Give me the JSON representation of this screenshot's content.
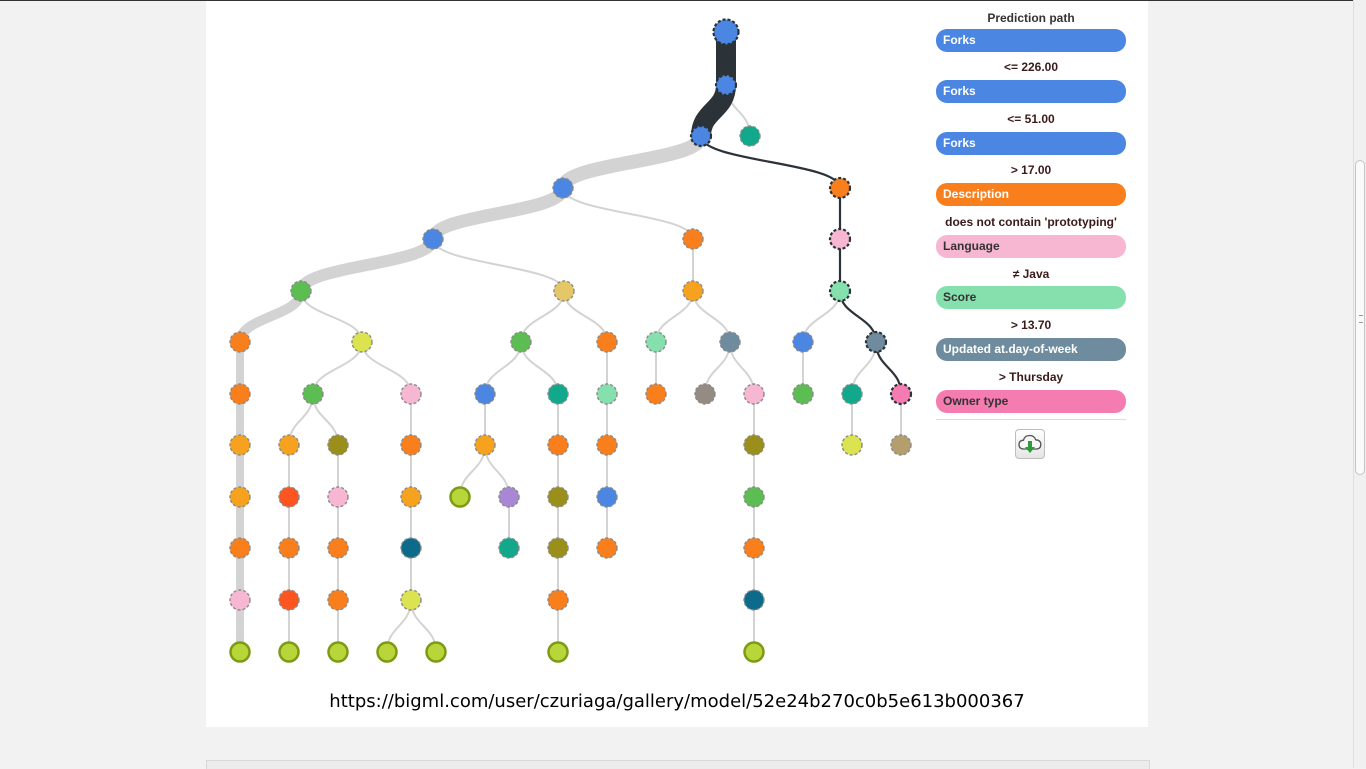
{
  "prediction_path": {
    "title": "Prediction path",
    "steps": [
      {
        "field": "Forks",
        "color": "#4a86e2",
        "text_color": "#ffffff",
        "condition": "<= 226.00"
      },
      {
        "field": "Forks",
        "color": "#4a86e2",
        "text_color": "#ffffff",
        "condition": "<= 51.00"
      },
      {
        "field": "Forks",
        "color": "#4a86e2",
        "text_color": "#ffffff",
        "condition": "> 17.00"
      },
      {
        "field": "Description",
        "color": "#f97f1d",
        "text_color": "#ffffff",
        "condition": "does not contain 'prototyping'"
      },
      {
        "field": "Language",
        "color": "#f7b6d2",
        "text_color": "#333333",
        "condition": "≠ Java"
      },
      {
        "field": "Score",
        "color": "#86e0ae",
        "text_color": "#333333",
        "condition": "> 13.70"
      },
      {
        "field": "Updated at.day-of-week",
        "color": "#6f8b9e",
        "text_color": "#ffffff",
        "condition": "> Thursday"
      },
      {
        "field": "Owner type",
        "color": "#f57cb0",
        "text_color": "#333333",
        "condition": null
      }
    ],
    "download_icon": "cloud-download-icon"
  },
  "model_url": "https://bigml.com/user/czuriaga/gallery/model/52e24b270c0b5e613b000367",
  "colors": {
    "Forks": "#4a86e2",
    "Stars": "#12a88b",
    "Description": "#f97f1d",
    "Language": "#f7b6d2",
    "Score": "#86e0ae",
    "Updated_day": "#6f8b9e",
    "Owner_type": "#f57cb0",
    "Watchers": "#5cbd52",
    "Open_issues": "#dbe350",
    "Size": "#e4c868",
    "Created": "#f7a21e",
    "Updated": "#fd5520",
    "Homepage": "#9a8f1a",
    "Pushed": "#0c6b8a",
    "Has_wiki": "#a888d4",
    "Has_issues": "#948c82",
    "Has_downloads": "#b59e6d",
    "Leaf": "#b8d63a"
  },
  "tree": {
    "nodes": [
      {
        "id": 0,
        "c": "Forks",
        "path": true
      },
      {
        "id": 1,
        "c": "Forks",
        "p": 0,
        "path": true
      },
      {
        "id": 2,
        "c": "Forks",
        "p": 1,
        "path": true
      },
      {
        "id": 3,
        "c": "Stars",
        "p": 1
      },
      {
        "id": 4,
        "c": "Forks",
        "p": 2
      },
      {
        "id": 5,
        "c": "Description",
        "p": 2,
        "path": true
      },
      {
        "id": 6,
        "c": "Forks",
        "p": 4
      },
      {
        "id": 7,
        "c": "Description",
        "p": 4
      },
      {
        "id": 8,
        "c": "Language",
        "p": 5,
        "path": true
      },
      {
        "id": 9,
        "c": "Watchers",
        "p": 6
      },
      {
        "id": 10,
        "c": "Size",
        "p": 6
      },
      {
        "id": 11,
        "c": "Created",
        "p": 7
      },
      {
        "id": 12,
        "c": "Score",
        "p": 8,
        "path": true
      },
      {
        "id": 13,
        "c": "Description",
        "p": 9
      },
      {
        "id": 14,
        "c": "Open_issues",
        "p": 9
      },
      {
        "id": 15,
        "c": "Watchers",
        "p": 10
      },
      {
        "id": 16,
        "c": "Description",
        "p": 10
      },
      {
        "id": 17,
        "c": "Score",
        "p": 11
      },
      {
        "id": 18,
        "c": "Updated_day",
        "p": 11
      },
      {
        "id": 19,
        "c": "Forks",
        "p": 12
      },
      {
        "id": 20,
        "c": "Updated_day",
        "p": 12,
        "path": true
      },
      {
        "id": 21,
        "c": "Description",
        "p": 13
      },
      {
        "id": 22,
        "c": "Watchers",
        "p": 14
      },
      {
        "id": 23,
        "c": "Language",
        "p": 14
      },
      {
        "id": 24,
        "c": "Forks",
        "p": 15
      },
      {
        "id": 25,
        "c": "Stars",
        "p": 15
      },
      {
        "id": 26,
        "c": "Score",
        "p": 16
      },
      {
        "id": 27,
        "c": "Description",
        "p": 17
      },
      {
        "id": 28,
        "c": "Has_issues",
        "p": 18
      },
      {
        "id": 29,
        "c": "Language",
        "p": 18
      },
      {
        "id": 30,
        "c": "Watchers",
        "p": 19
      },
      {
        "id": 31,
        "c": "Stars",
        "p": 20
      },
      {
        "id": 32,
        "c": "Owner_type",
        "p": 20,
        "path": true
      },
      {
        "id": 33,
        "c": "Created",
        "p": 21
      },
      {
        "id": 34,
        "c": "Created",
        "p": 22
      },
      {
        "id": 35,
        "c": "Homepage",
        "p": 22
      },
      {
        "id": 36,
        "c": "Description",
        "p": 23
      },
      {
        "id": 37,
        "c": "Created",
        "p": 24
      },
      {
        "id": 38,
        "c": "Description",
        "p": 25
      },
      {
        "id": 39,
        "c": "Description",
        "p": 26
      },
      {
        "id": 40,
        "c": "Homepage",
        "p": 29
      },
      {
        "id": 41,
        "c": "Open_issues",
        "p": 31
      },
      {
        "id": 42,
        "c": "Has_downloads",
        "p": 32
      },
      {
        "id": 43,
        "c": "Created",
        "p": 33
      },
      {
        "id": 44,
        "c": "Updated",
        "p": 34
      },
      {
        "id": 45,
        "c": "Language",
        "p": 35
      },
      {
        "id": 46,
        "c": "Created",
        "p": 36
      },
      {
        "id": 47,
        "c": "Leaf",
        "p": 37,
        "leaf": true
      },
      {
        "id": 48,
        "c": "Has_wiki",
        "p": 37
      },
      {
        "id": 49,
        "c": "Homepage",
        "p": 38
      },
      {
        "id": 50,
        "c": "Forks",
        "p": 39
      },
      {
        "id": 51,
        "c": "Watchers",
        "p": 40
      },
      {
        "id": 52,
        "c": "Description",
        "p": 43
      },
      {
        "id": 53,
        "c": "Description",
        "p": 44
      },
      {
        "id": 54,
        "c": "Description",
        "p": 45
      },
      {
        "id": 55,
        "c": "Pushed",
        "p": 46
      },
      {
        "id": 56,
        "c": "Stars",
        "p": 48
      },
      {
        "id": 57,
        "c": "Homepage",
        "p": 49
      },
      {
        "id": 58,
        "c": "Description",
        "p": 50
      },
      {
        "id": 59,
        "c": "Description",
        "p": 51
      },
      {
        "id": 60,
        "c": "Language",
        "p": 52
      },
      {
        "id": 61,
        "c": "Updated",
        "p": 53
      },
      {
        "id": 62,
        "c": "Description",
        "p": 54
      },
      {
        "id": 63,
        "c": "Open_issues",
        "p": 55
      },
      {
        "id": 64,
        "c": "Description",
        "p": 57
      },
      {
        "id": 65,
        "c": "Pushed",
        "p": 59
      },
      {
        "id": 66,
        "c": "Leaf",
        "p": 60,
        "leaf": true
      },
      {
        "id": 67,
        "c": "Leaf",
        "p": 61,
        "leaf": true
      },
      {
        "id": 68,
        "c": "Leaf",
        "p": 62,
        "leaf": true
      },
      {
        "id": 69,
        "c": "Leaf",
        "p": 63,
        "leaf": true
      },
      {
        "id": 70,
        "c": "Leaf",
        "p": 63,
        "leaf": true
      },
      {
        "id": 71,
        "c": "Leaf",
        "p": 64,
        "leaf": true
      },
      {
        "id": 72,
        "c": "Leaf",
        "p": 65,
        "leaf": true
      }
    ]
  }
}
